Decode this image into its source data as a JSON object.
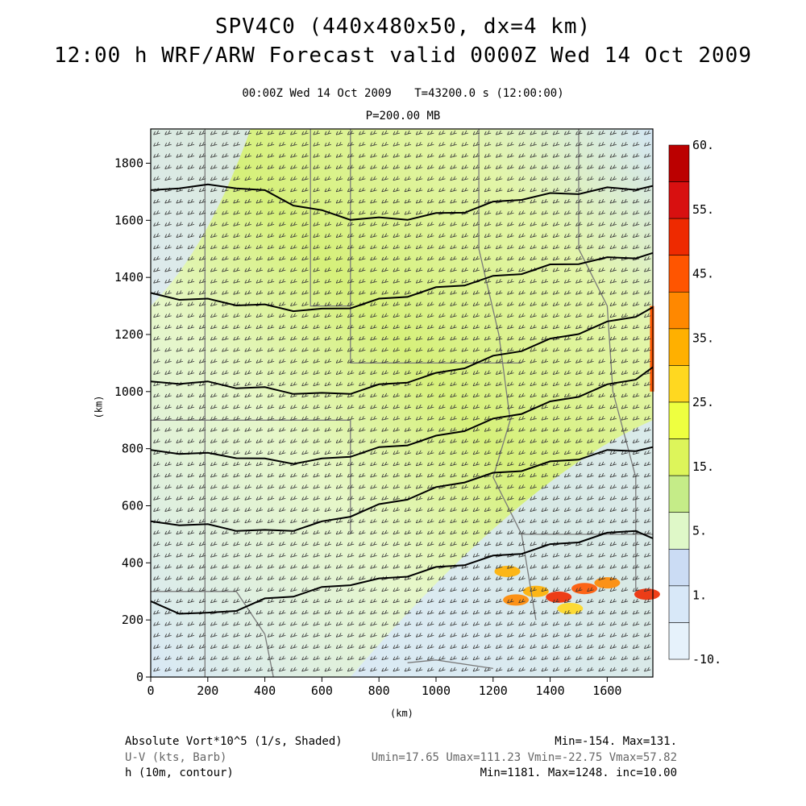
{
  "title": {
    "line1": "SPV4C0 (440x480x50, dx=4 km)",
    "line2": "12:00 h WRF/ARW Forecast valid 0000Z Wed 14 Oct 2009"
  },
  "subtitle": {
    "time": "00:00Z Wed 14 Oct 2009",
    "step": "T=43200.0 s (12:00:00)",
    "level": "P=200.00 MB"
  },
  "chart_data": {
    "type": "heatmap",
    "field": "Absolute Vort*10^5 (1/s, Shaded)",
    "xlabel": "(km)",
    "ylabel": "(km)",
    "xlim": [
      0,
      1760
    ],
    "ylim": [
      0,
      1920
    ],
    "xticks": [
      "0",
      "200",
      "400",
      "600",
      "800",
      "1000",
      "1200",
      "1400",
      "1600"
    ],
    "yticks": [
      "0",
      "200",
      "400",
      "600",
      "800",
      "1000",
      "1200",
      "1400",
      "1600",
      "1800"
    ],
    "colorbar": {
      "labels": [
        "60.",
        "55.",
        "45.",
        "35.",
        "25.",
        "15.",
        "5.",
        "1.",
        "-10."
      ],
      "colors": [
        "#bb0000",
        "#d81010",
        "#ee2a00",
        "#ff5500",
        "#ff8800",
        "#ffb000",
        "#ffd820",
        "#eeff40",
        "#ddf55a",
        "#c5ec88",
        "#dff8c8",
        "#cbdcf4",
        "#d8e8f8",
        "#e6f2fb"
      ]
    },
    "contours": {
      "variable": "h (10m, contour)",
      "lines": [
        {
          "x": [
            0,
            100,
            200,
            300,
            400,
            500,
            600,
            700,
            800,
            900,
            1000,
            1100,
            1200,
            1300,
            1400,
            1500,
            1600,
            1700,
            1760
          ],
          "y": [
            1700,
            1720,
            1720,
            1720,
            1700,
            1660,
            1630,
            1610,
            1605,
            1610,
            1620,
            1635,
            1660,
            1680,
            1690,
            1700,
            1710,
            1715,
            1715
          ]
        },
        {
          "x": [
            0,
            100,
            200,
            300,
            400,
            500,
            600,
            700,
            800,
            900,
            1000,
            1100,
            1200,
            1300,
            1400,
            1500,
            1600,
            1700,
            1760
          ],
          "y": [
            1340,
            1330,
            1320,
            1310,
            1300,
            1290,
            1285,
            1300,
            1320,
            1340,
            1360,
            1380,
            1400,
            1420,
            1440,
            1455,
            1465,
            1475,
            1480
          ]
        },
        {
          "x": [
            0,
            100,
            200,
            300,
            400,
            500,
            600,
            700,
            800,
            900,
            1000,
            1100,
            1200,
            1300,
            1400,
            1500,
            1600,
            1700,
            1760
          ],
          "y": [
            1030,
            1035,
            1030,
            1020,
            1010,
            1000,
            990,
            1000,
            1020,
            1040,
            1060,
            1090,
            1120,
            1150,
            1180,
            1210,
            1240,
            1270,
            1290
          ]
        },
        {
          "x": [
            0,
            100,
            200,
            300,
            400,
            500,
            600,
            700,
            800,
            900,
            1000,
            1100,
            1200,
            1300,
            1400,
            1500,
            1600,
            1700,
            1760
          ],
          "y": [
            790,
            790,
            780,
            775,
            760,
            755,
            760,
            780,
            800,
            820,
            840,
            870,
            900,
            930,
            960,
            990,
            1020,
            1050,
            1080
          ]
        },
        {
          "x": [
            0,
            100,
            200,
            300,
            400,
            500,
            600,
            700,
            800,
            900,
            1000,
            1100,
            1200,
            1300,
            1400,
            1500,
            1600,
            1700,
            1760
          ],
          "y": [
            540,
            540,
            530,
            520,
            510,
            520,
            540,
            570,
            600,
            630,
            660,
            690,
            710,
            730,
            750,
            770,
            790,
            800,
            800
          ]
        },
        {
          "x": [
            0,
            100,
            200,
            300,
            400,
            500,
            600,
            700,
            800,
            900,
            1000,
            1100,
            1200,
            1300,
            1400,
            1500,
            1600,
            1700,
            1760
          ],
          "y": [
            260,
            230,
            220,
            240,
            270,
            290,
            310,
            330,
            340,
            360,
            380,
            400,
            420,
            440,
            460,
            480,
            500,
            520,
            480
          ]
        }
      ]
    }
  },
  "legend": {
    "line1_left": "Absolute Vort*10^5 (1/s, Shaded)",
    "line1_right": "Min=-154. Max=131.",
    "line2_left": "U-V (kts, Barb)",
    "line2_right": "Umin=17.65 Umax=111.23 Vmin=-22.75 Vmax=57.82",
    "line3_left": "h (10m, contour)",
    "line3_right": "Min=1181. Max=1248. inc=10.00"
  }
}
